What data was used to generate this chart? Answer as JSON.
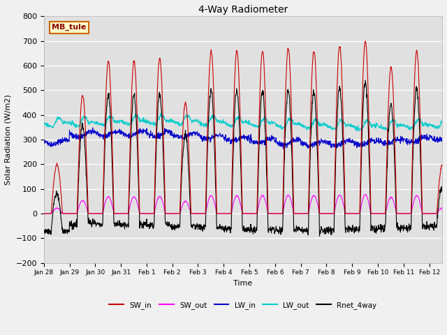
{
  "title": "4-Way Radiometer",
  "xlabel": "Time",
  "ylabel": "Solar Radiation (W/m2)",
  "ylim": [
    -200,
    800
  ],
  "yticks": [
    -200,
    -100,
    0,
    100,
    200,
    300,
    400,
    500,
    600,
    700,
    800
  ],
  "xlim": [
    0,
    15.5
  ],
  "colors": {
    "SW_in": "#cc0000",
    "SW_out": "#ff00ff",
    "LW_in": "#0000cc",
    "LW_out": "#00cccc",
    "Rnet_4way": "#000000"
  },
  "legend_label": "MB_tule",
  "legend_box_facecolor": "#ffffcc",
  "legend_box_edgecolor": "#cc6600",
  "ax_bg_color": "#e0e0e0",
  "fig_bg_color": "#f0f0f0",
  "grid_color": "#ffffff",
  "line_width": 0.8,
  "tick_labels": [
    "Jan 28",
    "Jan 29",
    "Jan 30",
    "Jan 31",
    "Feb 1",
    "Feb 2",
    "Feb 3",
    "Feb 4",
    "Feb 5",
    "Feb 6",
    "Feb 7",
    "Feb 8",
    "Feb 9",
    "Feb 10",
    "Feb 11",
    "Feb 12"
  ],
  "tick_positions": [
    0,
    1,
    2,
    3,
    4,
    5,
    6,
    7,
    8,
    9,
    10,
    11,
    12,
    13,
    14,
    15
  ],
  "day_amplitudes_sw": [
    200,
    480,
    620,
    620,
    630,
    450,
    660,
    660,
    660,
    670,
    660,
    680,
    700,
    595,
    660,
    200
  ]
}
